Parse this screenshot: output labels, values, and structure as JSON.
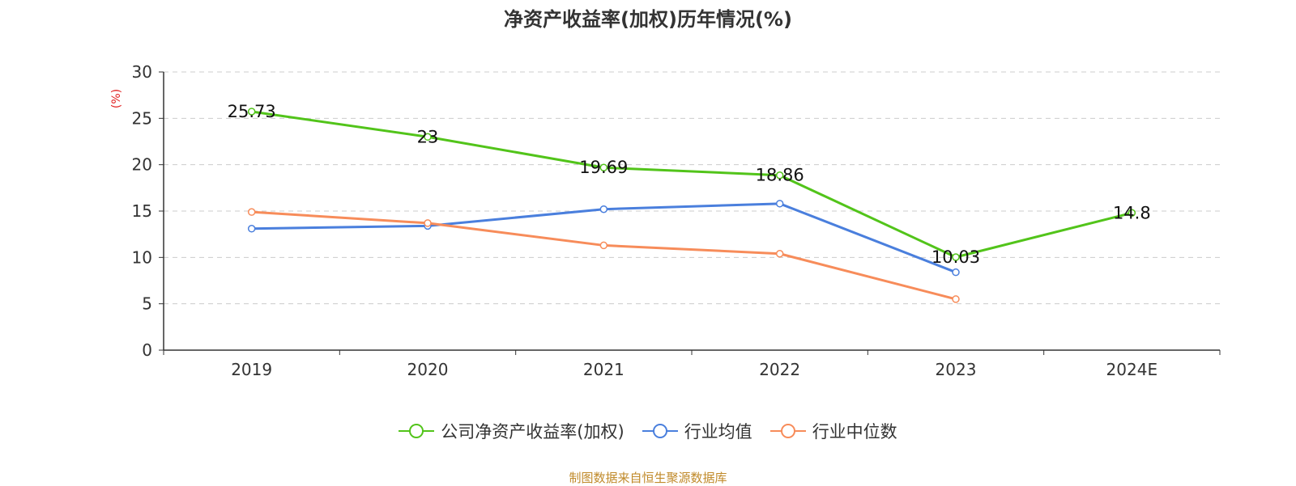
{
  "title": "净资产收益率(加权)历年情况(%)",
  "source": "制图数据来自恒生聚源数据库",
  "chart_data": {
    "type": "line",
    "title": "净资产收益率(加权)历年情况(%)",
    "ylabel": "(%)",
    "xlabel": "",
    "categories": [
      "2019",
      "2020",
      "2021",
      "2022",
      "2023",
      "2024E"
    ],
    "ylim": [
      0,
      30
    ],
    "yticks": [
      "0",
      "5",
      "10",
      "15",
      "20",
      "25",
      "30"
    ],
    "grid": true,
    "legend_position": "bottom",
    "series": [
      {
        "name": "公司净资产收益率(加权)",
        "color": "#52c41a",
        "values": [
          25.73,
          23,
          19.69,
          18.86,
          10.03,
          14.8
        ],
        "data_labels": [
          "25.73",
          "23",
          "19.69",
          "18.86",
          "10.03",
          "14.8"
        ]
      },
      {
        "name": "行业均值",
        "color": "#4a7fdd",
        "values": [
          13.1,
          13.4,
          15.2,
          15.8,
          8.4,
          null
        ]
      },
      {
        "name": "行业中位数",
        "color": "#f78c5a",
        "values": [
          14.9,
          13.7,
          11.3,
          10.4,
          5.5,
          null
        ]
      }
    ]
  }
}
